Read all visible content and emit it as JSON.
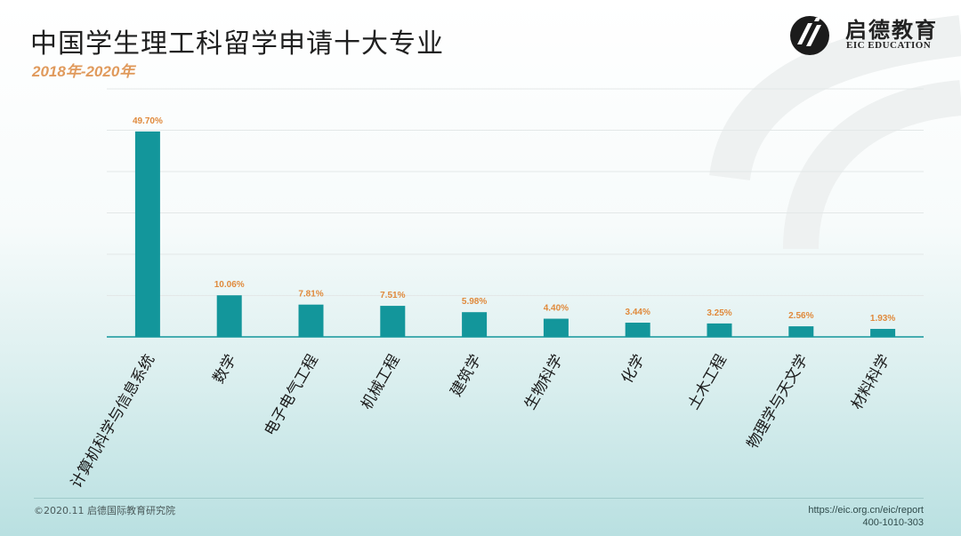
{
  "header": {
    "title": "中国学生理工科留学申请十大专业",
    "subtitle": "2018年-2020年"
  },
  "logo": {
    "name_cn": "启德教育",
    "name_en": "EIC EDUCATION"
  },
  "footer": {
    "copyright": "©2020.11 启德国际教育研究院",
    "url": "https://eic.org.cn/eic/report",
    "phone": "400-1010-303"
  },
  "colors": {
    "bar": "#13969b",
    "value_label": "#e08a3c",
    "axis": "#13969b",
    "grid": "#e3e8e8"
  },
  "chart_data": {
    "type": "bar",
    "categories": [
      "计算机科学与信息系统",
      "数学",
      "电子电气工程",
      "机械工程",
      "建筑学",
      "生物科学",
      "化学",
      "土木工程",
      "物理学与天文学",
      "材料科学"
    ],
    "values": [
      49.7,
      10.06,
      7.81,
      7.51,
      5.98,
      4.4,
      3.44,
      3.25,
      2.56,
      1.93
    ],
    "value_labels": [
      "49.70%",
      "10.06%",
      "7.81%",
      "7.51%",
      "5.98%",
      "4.40%",
      "3.44%",
      "3.25%",
      "2.56%",
      "1.93%"
    ],
    "ylim": [
      0,
      60
    ],
    "grid": true,
    "legend": "none"
  }
}
